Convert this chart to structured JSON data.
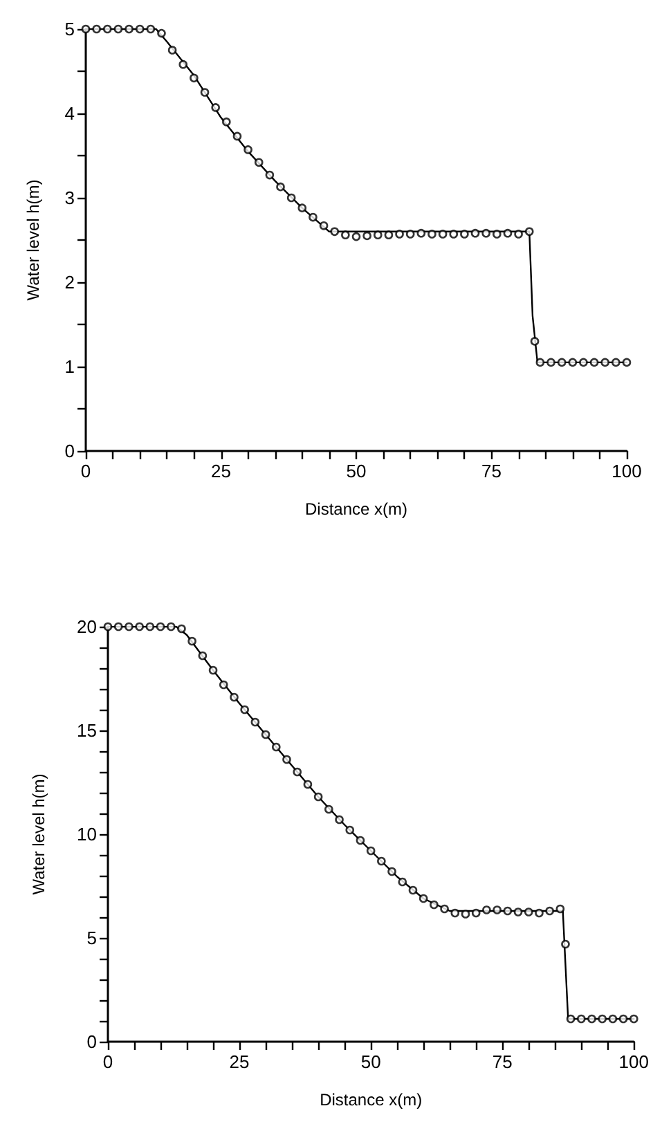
{
  "chart_data": [
    {
      "type": "line",
      "xlabel": "Distance x(m)",
      "ylabel": "Water level h(m)",
      "xlim": [
        0,
        100
      ],
      "ylim": [
        0,
        5
      ],
      "xticks": [
        0,
        {
          "value": 5,
          "label": null
        },
        {
          "value": 10,
          "label": null
        },
        {
          "value": 15,
          "label": null
        },
        {
          "value": 20,
          "label": null
        },
        25,
        {
          "value": 30,
          "label": null
        },
        {
          "value": 35,
          "label": null
        },
        {
          "value": 40,
          "label": null
        },
        {
          "value": 45,
          "label": null
        },
        50,
        {
          "value": 55,
          "label": null
        },
        {
          "value": 60,
          "label": null
        },
        {
          "value": 65,
          "label": null
        },
        {
          "value": 70,
          "label": null
        },
        75,
        {
          "value": 80,
          "label": null
        },
        {
          "value": 85,
          "label": null
        },
        {
          "value": 90,
          "label": null
        },
        {
          "value": 95,
          "label": null
        },
        100
      ],
      "yticks": [
        0,
        {
          "value": 0.5,
          "label": null
        },
        1,
        {
          "value": 1.5,
          "label": null
        },
        2,
        {
          "value": 2.5,
          "label": null
        },
        3,
        {
          "value": 3.5,
          "label": null
        },
        4,
        {
          "value": 4.5,
          "label": null
        },
        5
      ],
      "series": [
        {
          "color": "#000000",
          "marker": "none",
          "line_style": "solid",
          "x": [
            0,
            13,
            15,
            20,
            25,
            30,
            35,
            40,
            45,
            82,
            82.6,
            83.5,
            100
          ],
          "values": [
            5,
            5,
            4.85,
            4.45,
            3.95,
            3.55,
            3.2,
            2.88,
            2.6,
            2.6,
            1.6,
            1.05,
            1.05
          ]
        },
        {
          "type": "scatter",
          "color": "#000000",
          "marker": "circle",
          "x": [
            0,
            2,
            4,
            6,
            8,
            10,
            12,
            14,
            16,
            18,
            20,
            22,
            24,
            26,
            28,
            30,
            32,
            34,
            36,
            38,
            40,
            42,
            44,
            46,
            48,
            50,
            52,
            54,
            56,
            58,
            60,
            62,
            64,
            66,
            68,
            70,
            72,
            74,
            76,
            78,
            80,
            82,
            83,
            84,
            86,
            88,
            90,
            92,
            94,
            96,
            98,
            100
          ],
          "values": [
            5,
            5,
            5,
            5,
            5,
            5,
            5,
            4.95,
            4.75,
            4.58,
            4.42,
            4.25,
            4.07,
            3.9,
            3.73,
            3.57,
            3.42,
            3.27,
            3.13,
            3.0,
            2.88,
            2.77,
            2.67,
            2.6,
            2.56,
            2.54,
            2.55,
            2.56,
            2.56,
            2.57,
            2.57,
            2.58,
            2.57,
            2.57,
            2.57,
            2.57,
            2.58,
            2.58,
            2.57,
            2.58,
            2.57,
            2.6,
            1.3,
            1.05,
            1.05,
            1.05,
            1.05,
            1.05,
            1.05,
            1.05,
            1.05,
            1.05
          ]
        }
      ]
    },
    {
      "type": "line",
      "xlabel": "Distance x(m)",
      "ylabel": "Water level h(m)",
      "xlim": [
        0,
        100
      ],
      "ylim": [
        0,
        20
      ],
      "xticks": [
        0,
        {
          "value": 5,
          "label": null
        },
        {
          "value": 10,
          "label": null
        },
        {
          "value": 15,
          "label": null
        },
        {
          "value": 20,
          "label": null
        },
        25,
        {
          "value": 30,
          "label": null
        },
        {
          "value": 35,
          "label": null
        },
        {
          "value": 40,
          "label": null
        },
        {
          "value": 45,
          "label": null
        },
        50,
        {
          "value": 55,
          "label": null
        },
        {
          "value": 60,
          "label": null
        },
        {
          "value": 65,
          "label": null
        },
        {
          "value": 70,
          "label": null
        },
        75,
        {
          "value": 80,
          "label": null
        },
        {
          "value": 85,
          "label": null
        },
        {
          "value": 90,
          "label": null
        },
        {
          "value": 95,
          "label": null
        },
        100
      ],
      "yticks": [
        0,
        {
          "value": 1,
          "label": null
        },
        {
          "value": 2,
          "label": null
        },
        {
          "value": 3,
          "label": null
        },
        {
          "value": 4,
          "label": null
        },
        5,
        {
          "value": 6,
          "label": null
        },
        {
          "value": 7,
          "label": null
        },
        {
          "value": 8,
          "label": null
        },
        {
          "value": 9,
          "label": null
        },
        10,
        {
          "value": 11,
          "label": null
        },
        {
          "value": 12,
          "label": null
        },
        {
          "value": 13,
          "label": null
        },
        {
          "value": 14,
          "label": null
        },
        15,
        {
          "value": 16,
          "label": null
        },
        {
          "value": 17,
          "label": null
        },
        {
          "value": 18,
          "label": null
        },
        {
          "value": 19,
          "label": null
        },
        20
      ],
      "series": [
        {
          "color": "#000000",
          "marker": "none",
          "line_style": "solid",
          "x": [
            0,
            13,
            15,
            20,
            25,
            30,
            35,
            40,
            45,
            50,
            55,
            60,
            65,
            86.5,
            87.5,
            100
          ],
          "values": [
            20,
            20,
            19.6,
            17.9,
            16.3,
            14.8,
            13.3,
            11.8,
            10.45,
            9.2,
            7.95,
            6.9,
            6.3,
            6.3,
            1.1,
            1.1
          ]
        },
        {
          "type": "scatter",
          "color": "#000000",
          "marker": "circle",
          "x": [
            0,
            2,
            4,
            6,
            8,
            10,
            12,
            14,
            16,
            18,
            20,
            22,
            24,
            26,
            28,
            30,
            32,
            34,
            36,
            38,
            40,
            42,
            44,
            46,
            48,
            50,
            52,
            54,
            56,
            58,
            60,
            62,
            64,
            66,
            68,
            70,
            72,
            74,
            76,
            78,
            80,
            82,
            84,
            86,
            87,
            88,
            90,
            92,
            94,
            96,
            98,
            100
          ],
          "values": [
            20,
            20,
            20,
            20,
            20,
            20,
            20,
            19.9,
            19.3,
            18.6,
            17.9,
            17.2,
            16.6,
            16.0,
            15.4,
            14.8,
            14.2,
            13.6,
            13.0,
            12.4,
            11.8,
            11.2,
            10.7,
            10.2,
            9.7,
            9.2,
            8.7,
            8.2,
            7.7,
            7.3,
            6.9,
            6.6,
            6.4,
            6.2,
            6.15,
            6.2,
            6.35,
            6.35,
            6.3,
            6.25,
            6.25,
            6.2,
            6.3,
            6.4,
            4.7,
            1.1,
            1.1,
            1.1,
            1.1,
            1.1,
            1.1,
            1.1
          ]
        }
      ]
    }
  ]
}
